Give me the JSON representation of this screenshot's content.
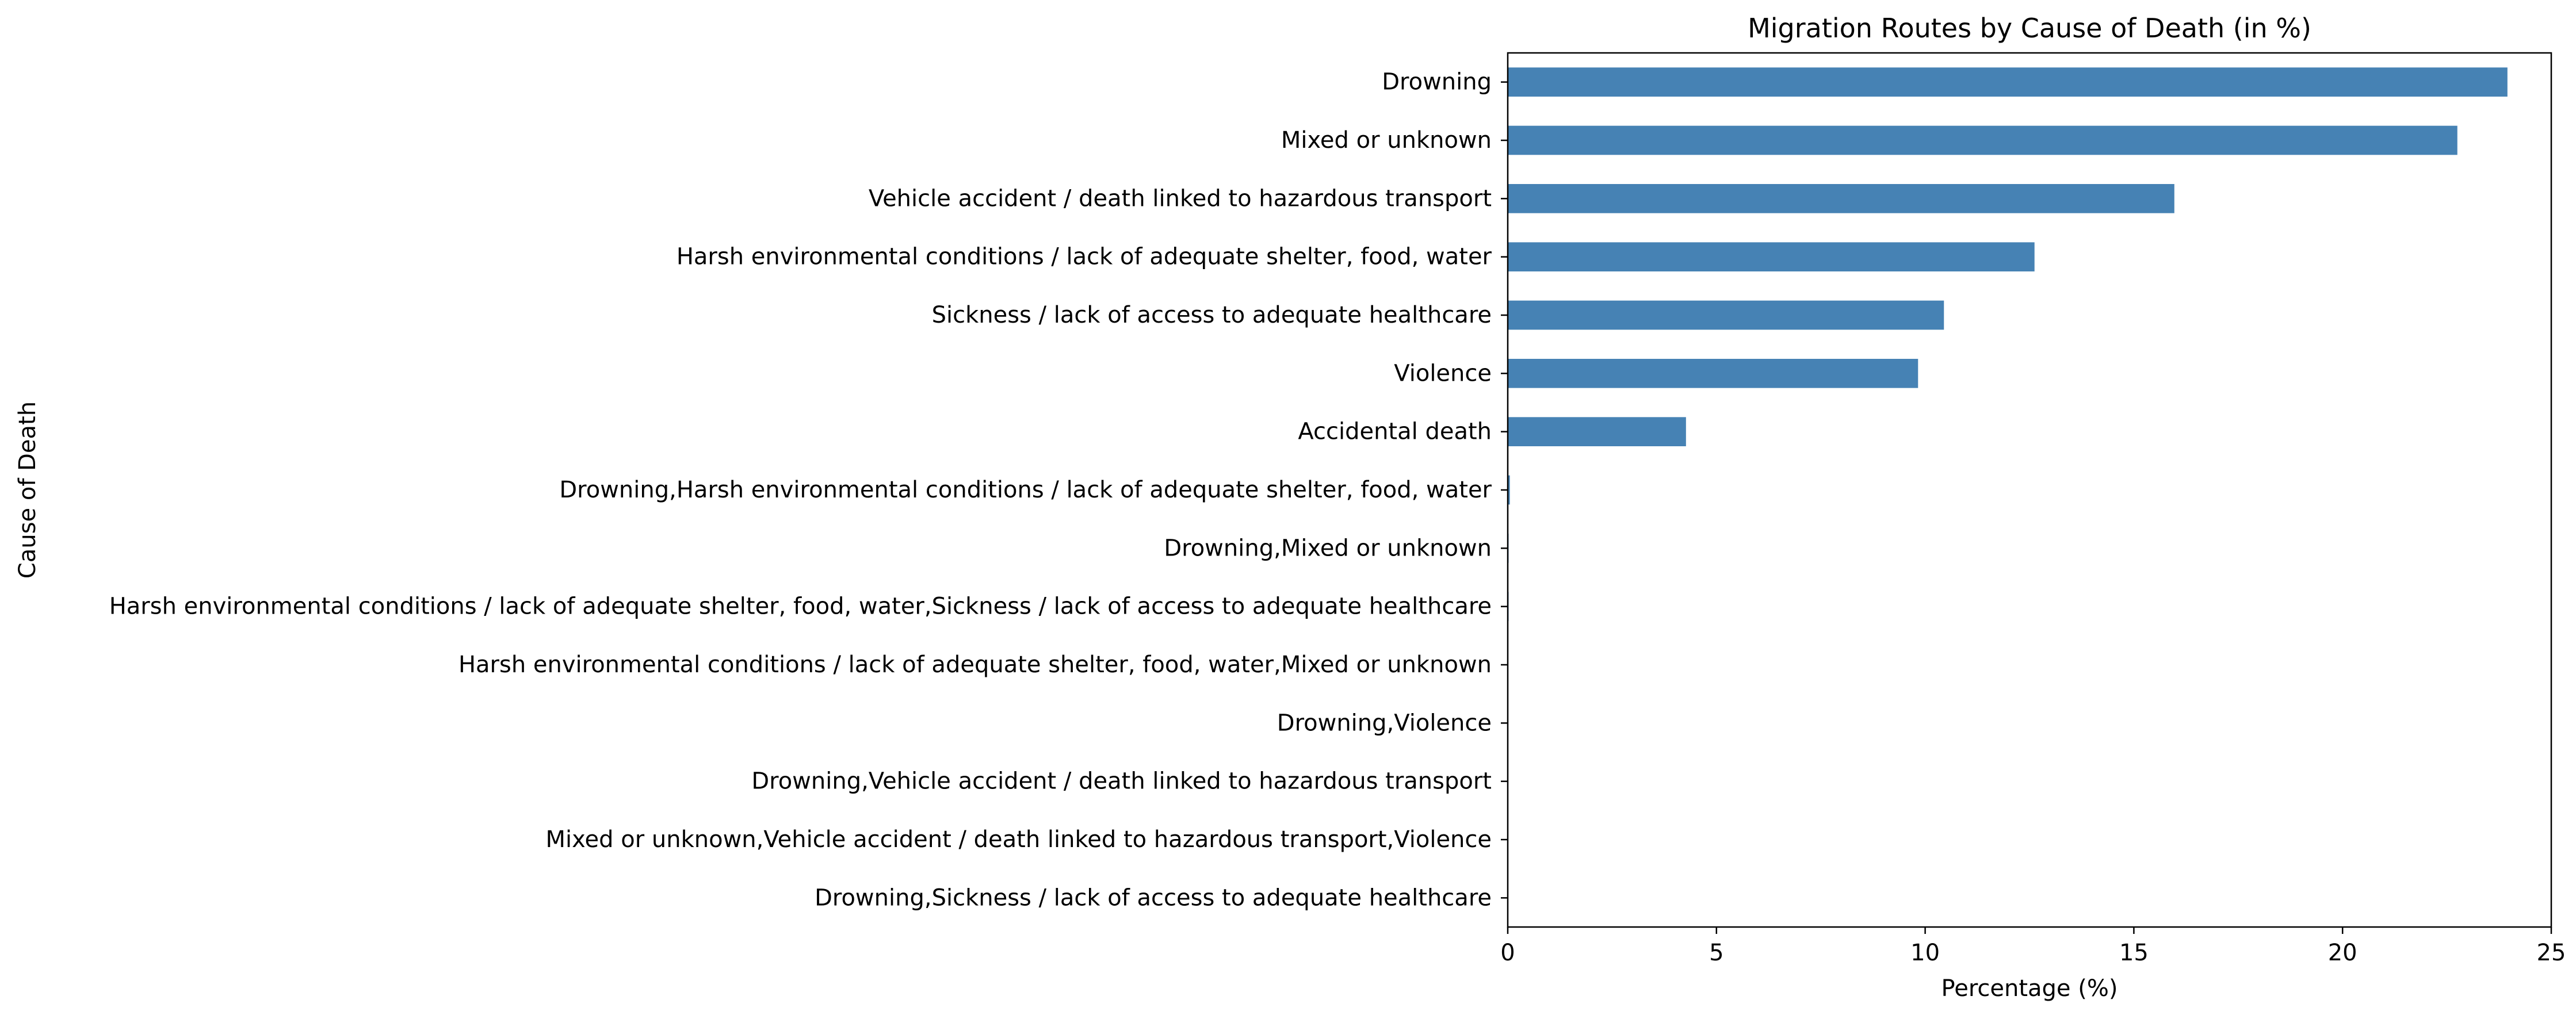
{
  "chart_data": {
    "type": "bar",
    "orientation": "horizontal",
    "title": "Migration Routes by Cause of Death (in %)",
    "xlabel": "Percentage (%)",
    "ylabel": "Cause of Death",
    "xlim": [
      0,
      25
    ],
    "xticks": [
      0,
      5,
      10,
      15,
      20,
      25
    ],
    "grid": false,
    "bar_color": "#4682b4",
    "categories": [
      "Drowning",
      "Mixed or unknown",
      "Vehicle accident / death linked to hazardous transport",
      "Harsh environmental conditions / lack of adequate shelter, food, water",
      "Sickness / lack of access to adequate healthcare",
      "Violence",
      "Accidental death",
      "Drowning,Harsh environmental conditions / lack of adequate shelter, food, water",
      "Drowning,Mixed or unknown",
      "Harsh environmental conditions / lack of adequate shelter, food, water,Sickness / lack of access to adequate healthcare",
      "Harsh environmental conditions / lack of adequate shelter, food, water,Mixed or unknown",
      "Drowning,Violence",
      "Drowning,Vehicle accident / death linked to hazardous transport",
      "Mixed or unknown,Vehicle accident / death linked to hazardous transport,Violence",
      "Drowning,Sickness / lack of access to adequate healthcare"
    ],
    "values": [
      23.95,
      22.75,
      15.97,
      12.62,
      10.45,
      9.83,
      4.27,
      0.05,
      0.02,
      0.02,
      0.01,
      0.01,
      0.01,
      0.01,
      0.01
    ]
  }
}
